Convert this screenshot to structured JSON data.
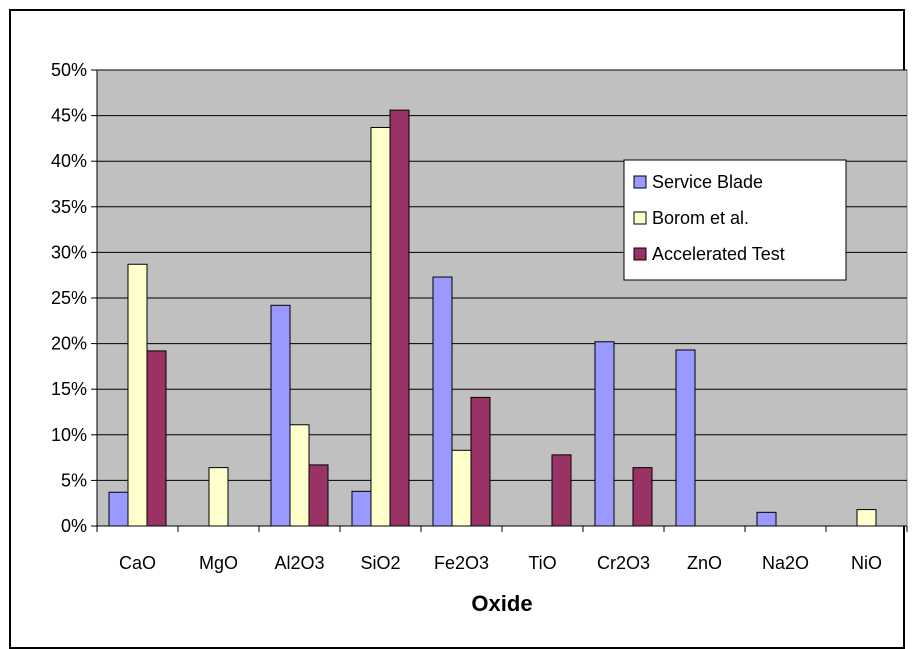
{
  "chart_data": {
    "type": "bar",
    "title": "",
    "xlabel": "Oxide",
    "ylabel": "",
    "categories": [
      "CaO",
      "MgO",
      "Al2O3",
      "SiO2",
      "Fe2O3",
      "TiO",
      "Cr2O3",
      "ZnO",
      "Na2O",
      "NiO"
    ],
    "ylim": [
      0,
      50
    ],
    "yticks": [
      0,
      5,
      10,
      15,
      20,
      25,
      30,
      35,
      40,
      45,
      50
    ],
    "ytick_labels": [
      "0%",
      "5%",
      "10%",
      "15%",
      "20%",
      "25%",
      "30%",
      "35%",
      "40%",
      "45%",
      "50%"
    ],
    "grid": true,
    "legend_position": "right",
    "plot_background": "#c0c0c0",
    "series": [
      {
        "name": "Service Blade",
        "color": "#9999ff",
        "values": [
          3.7,
          0,
          24.2,
          3.8,
          27.3,
          0,
          20.2,
          19.3,
          1.5,
          0
        ]
      },
      {
        "name": "Borom et al.",
        "color": "#ffffcc",
        "values": [
          28.7,
          6.4,
          11.1,
          43.7,
          8.3,
          0,
          0,
          0,
          0,
          1.8
        ]
      },
      {
        "name": "Accelerated Test",
        "color": "#993366",
        "values": [
          19.2,
          0,
          6.7,
          45.6,
          14.1,
          7.8,
          6.4,
          0,
          0,
          0
        ]
      }
    ]
  }
}
